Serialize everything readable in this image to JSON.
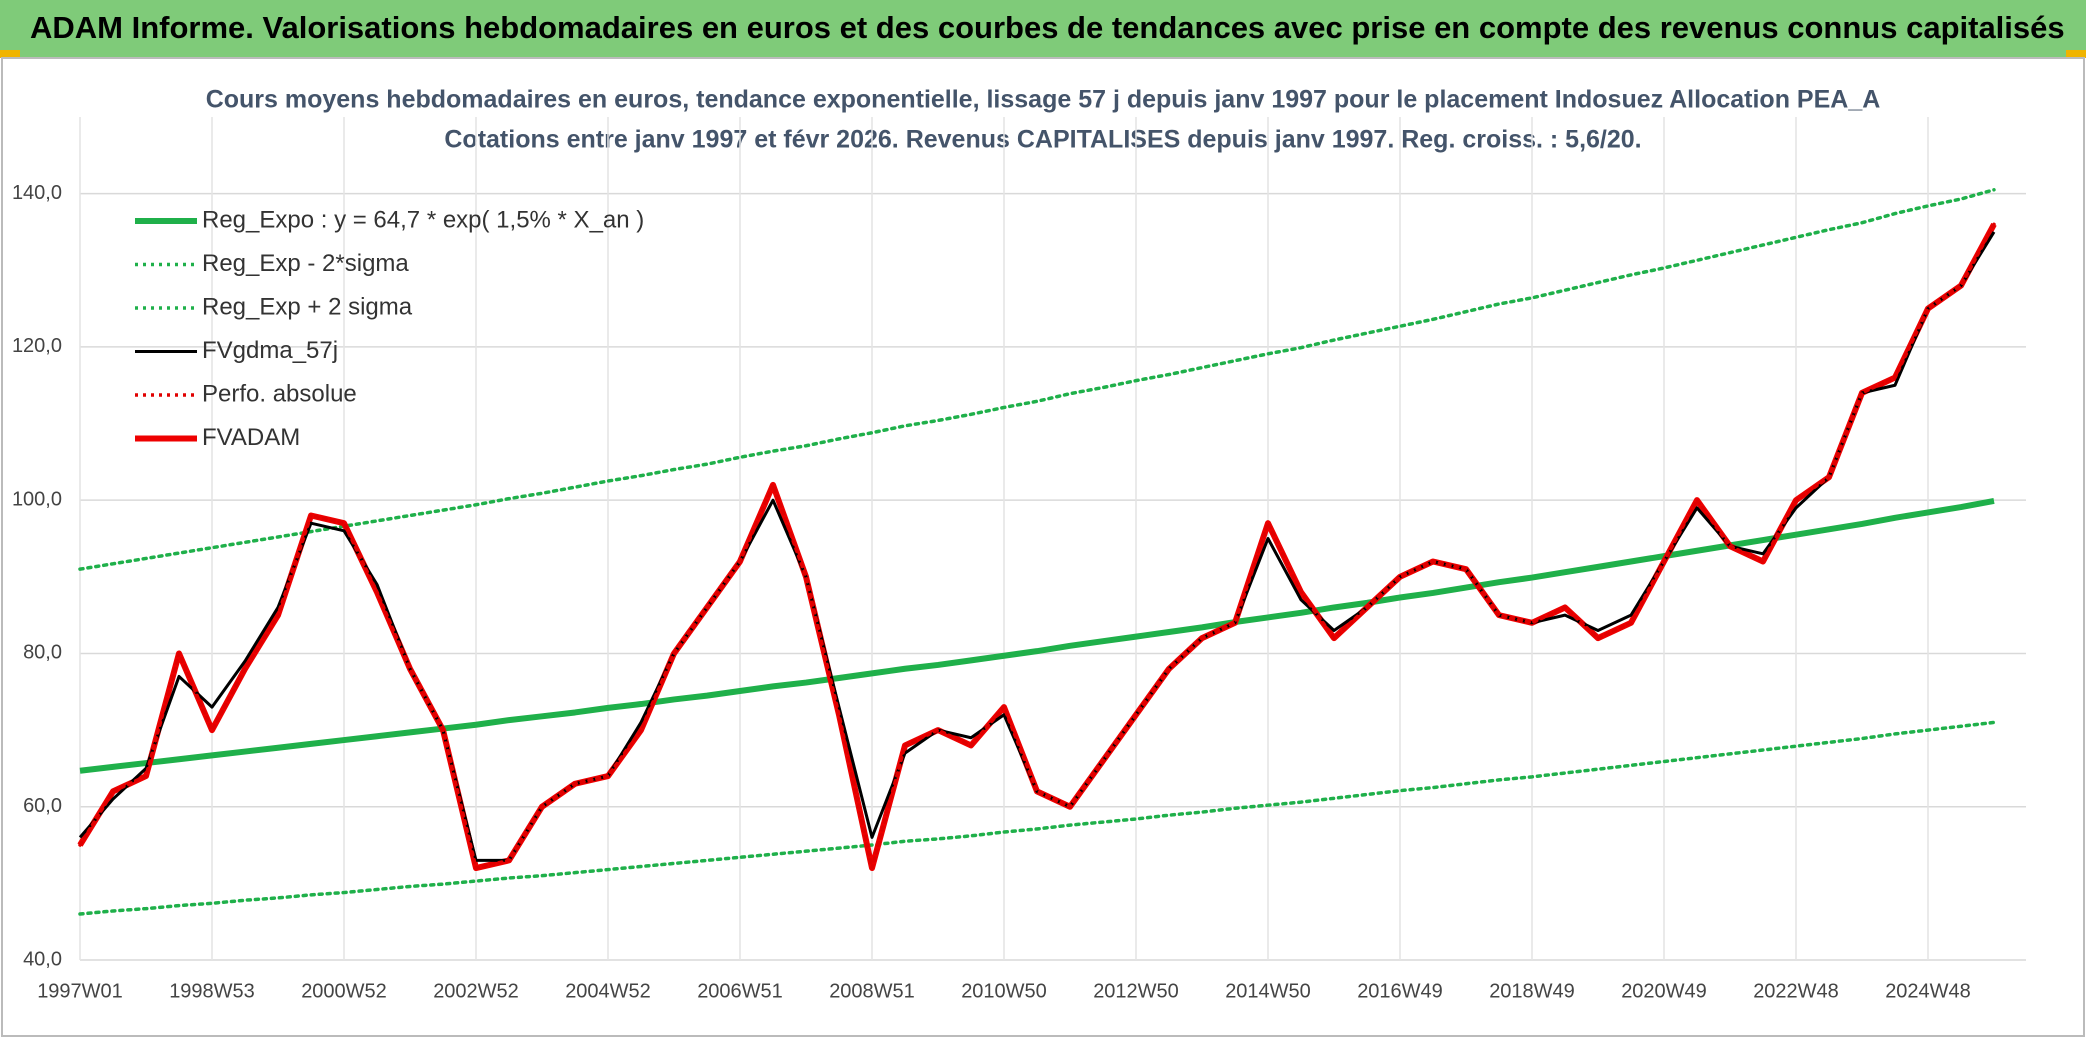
{
  "chart_data": {
    "type": "line",
    "header": "ADAM Informe. Valorisations hebdomadaires en euros et des courbes de tendances avec prise en compte des revenus connus capitalisés",
    "title": "Cours moyens hebdomadaires en euros, tendance exponentielle, lissage 57 j depuis janv 1997 pour le placement Indosuez Allocation PEA_A",
    "subtitle": "Cotations entre janv 1997 et févr 2026. Revenus CAPITALISES depuis janv 1997. Reg. croiss. : 5,6/20.",
    "categories": [
      "1997W01",
      null,
      null,
      null,
      "1998W53",
      null,
      null,
      null,
      "2000W52",
      null,
      null,
      null,
      "2002W52",
      null,
      null,
      null,
      "2004W52",
      null,
      null,
      null,
      "2006W51",
      null,
      null,
      null,
      "2008W51",
      null,
      null,
      null,
      "2010W50",
      null,
      null,
      null,
      "2012W50",
      null,
      null,
      null,
      "2014W50",
      null,
      null,
      null,
      "2016W49",
      null,
      null,
      null,
      "2018W49",
      null,
      null,
      null,
      "2020W49",
      null,
      null,
      null,
      "2022W48",
      null,
      null,
      null,
      "2024W48",
      null,
      null
    ],
    "ylim": [
      40,
      150
    ],
    "yticks": [
      {
        "value": 40,
        "label": "40,0"
      },
      {
        "value": 60,
        "label": "60,0"
      },
      {
        "value": 80,
        "label": "80,0"
      },
      {
        "value": 100,
        "label": "100,0"
      },
      {
        "value": 120,
        "label": "120,0"
      },
      {
        "value": 140,
        "label": "140,0"
      }
    ],
    "grid": true,
    "legend": "top-left",
    "series": [
      {
        "name": "Reg_Expo : y = 64,7 * exp( 1,5% *  X_an )",
        "color": "#1fb04a",
        "line_style": "bold",
        "values": [
          64.7,
          65.2,
          65.7,
          66.2,
          66.7,
          67.2,
          67.7,
          68.2,
          68.7,
          69.2,
          69.7,
          70.2,
          70.7,
          71.3,
          71.8,
          72.3,
          72.9,
          73.4,
          74.0,
          74.5,
          75.1,
          75.7,
          76.2,
          76.8,
          77.4,
          78.0,
          78.5,
          79.1,
          79.7,
          80.3,
          81.0,
          81.6,
          82.2,
          82.8,
          83.4,
          84.1,
          84.7,
          85.3,
          86.0,
          86.6,
          87.3,
          87.9,
          88.6,
          89.3,
          89.9,
          90.6,
          91.3,
          92.0,
          92.7,
          93.4,
          94.1,
          94.8,
          95.5,
          96.2,
          96.9,
          97.7,
          98.4,
          99.1,
          99.9
        ]
      },
      {
        "name": "Reg_Exp - 2*sigma",
        "color": "#1fb04a",
        "line_style": "dotted",
        "values": [
          46.0,
          46.4,
          46.7,
          47.1,
          47.4,
          47.8,
          48.1,
          48.5,
          48.8,
          49.2,
          49.6,
          49.9,
          50.3,
          50.7,
          51.0,
          51.4,
          51.8,
          52.2,
          52.6,
          53.0,
          53.4,
          53.8,
          54.2,
          54.6,
          55.0,
          55.5,
          55.8,
          56.2,
          56.7,
          57.1,
          57.6,
          58.0,
          58.4,
          58.9,
          59.3,
          59.8,
          60.2,
          60.6,
          61.1,
          61.6,
          62.1,
          62.5,
          63.0,
          63.5,
          63.9,
          64.4,
          64.9,
          65.4,
          65.9,
          66.4,
          66.9,
          67.4,
          67.9,
          68.4,
          68.9,
          69.5,
          70.0,
          70.5,
          71.0
        ]
      },
      {
        "name": "Reg_Exp + 2 sigma",
        "color": "#1fb04a",
        "line_style": "dotted",
        "values": [
          91.0,
          91.7,
          92.4,
          93.1,
          93.8,
          94.5,
          95.2,
          95.9,
          96.6,
          97.3,
          98.0,
          98.7,
          99.4,
          100.2,
          100.9,
          101.7,
          102.5,
          103.2,
          104.0,
          104.7,
          105.6,
          106.4,
          107.1,
          108.0,
          108.8,
          109.7,
          110.4,
          111.2,
          112.1,
          112.9,
          113.9,
          114.7,
          115.6,
          116.4,
          117.3,
          118.2,
          119.1,
          119.9,
          120.9,
          121.8,
          122.7,
          123.6,
          124.6,
          125.6,
          126.4,
          127.4,
          128.4,
          129.4,
          130.3,
          131.3,
          132.3,
          133.3,
          134.3,
          135.3,
          136.2,
          137.4,
          138.4,
          139.3,
          140.5
        ]
      },
      {
        "name": "FVgdma_57j",
        "color": "#000000",
        "line_style": "solid",
        "values": [
          56,
          61,
          65,
          77,
          73,
          79,
          86,
          97,
          96,
          89,
          78,
          70,
          53,
          53,
          60,
          63,
          64,
          71,
          80,
          86,
          92,
          100,
          90,
          73,
          56,
          67,
          70,
          69,
          72,
          62,
          60,
          66,
          72,
          78,
          82,
          84,
          95,
          87,
          83,
          86,
          90,
          92,
          91,
          85,
          84,
          85,
          83,
          85,
          92,
          99,
          94,
          93,
          99,
          103,
          114,
          115,
          125,
          128,
          135
        ]
      },
      {
        "name": "Perfo. absolue",
        "color": "#e00000",
        "line_style": "dotted",
        "values": [
          55,
          62,
          64,
          80,
          70,
          78,
          85,
          98,
          97,
          88,
          78,
          70,
          52,
          53,
          60,
          63,
          64,
          70,
          80,
          86,
          92,
          102,
          90,
          72,
          52,
          68,
          70,
          68,
          73,
          62,
          60,
          66,
          72,
          78,
          82,
          84,
          97,
          88,
          82,
          86,
          90,
          92,
          91,
          85,
          84,
          86,
          82,
          84,
          92,
          100,
          94,
          92,
          100,
          103,
          114,
          116,
          125,
          128,
          136
        ]
      },
      {
        "name": "FVADAM",
        "color": "#ee0000",
        "line_style": "bold",
        "values": [
          55,
          62,
          64,
          80,
          70,
          78,
          85,
          98,
          97,
          88,
          78,
          70,
          52,
          53,
          60,
          63,
          64,
          70,
          80,
          86,
          92,
          102,
          90,
          72,
          52,
          68,
          70,
          68,
          73,
          62,
          60,
          66,
          72,
          78,
          82,
          84,
          97,
          88,
          82,
          86,
          90,
          92,
          91,
          85,
          84,
          86,
          82,
          84,
          92,
          100,
          94,
          92,
          100,
          103,
          114,
          116,
          125,
          128,
          136
        ]
      }
    ]
  }
}
